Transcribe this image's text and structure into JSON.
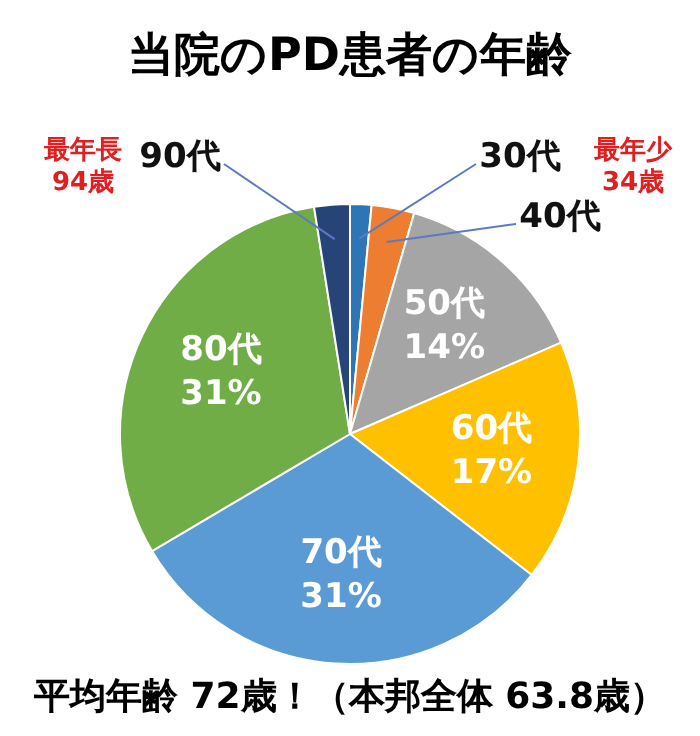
{
  "chart_data": {
    "type": "pie",
    "title": "当院のPD患者の年齢",
    "categories": [
      "30代",
      "40代",
      "50代",
      "60代",
      "70代",
      "80代",
      "90代"
    ],
    "values": [
      1.5,
      3,
      14,
      17,
      31,
      31,
      2.5
    ],
    "colors": [
      "#2e75b6",
      "#ed7d31",
      "#a5a5a5",
      "#ffc000",
      "#5b9bd5",
      "#70ad47",
      "#264478"
    ],
    "value_labels": [
      null,
      null,
      "14%",
      "17%",
      "31%",
      "31%",
      null
    ],
    "annotations": [
      "最年長\n94歳",
      "最年少\n34歳",
      "平均年齢 72歳！（本邦全体 63.8歳）"
    ],
    "legend": false
  }
}
